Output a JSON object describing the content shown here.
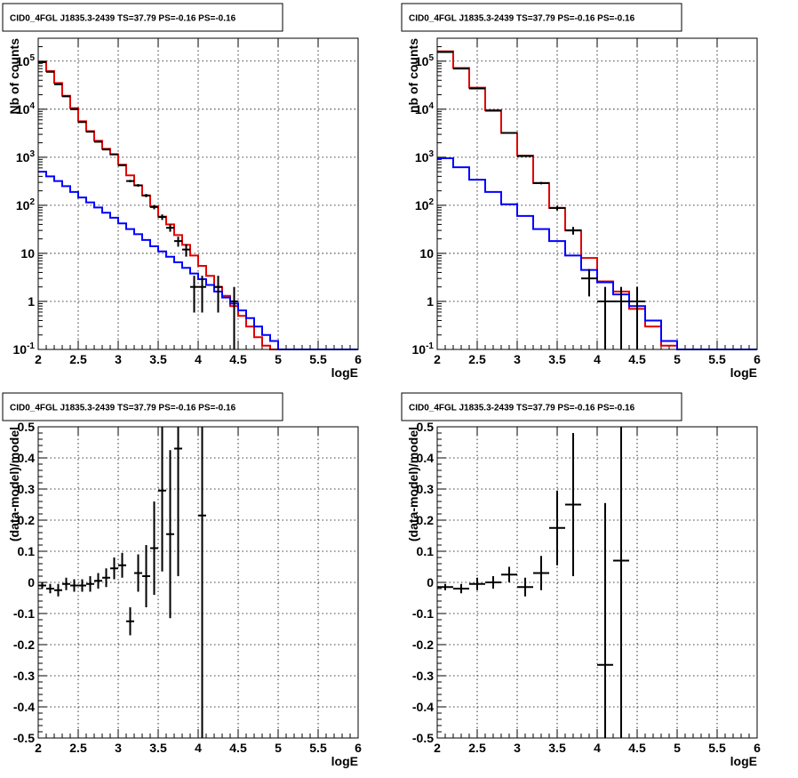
{
  "chart_data": [
    {
      "id": "tl",
      "type": "histogram",
      "title": "CID0_4FGL J1835.3-2439 TS=37.79 PS=-0.16 PS=-0.16",
      "xlabel": "logE",
      "ylabel": "Nb of counts",
      "log_y": true,
      "xlim": [
        2,
        6
      ],
      "ylim": [
        0.1,
        300000
      ],
      "x_ticks": [
        "2",
        "2.5",
        "3",
        "3.5",
        "4",
        "4.5",
        "5",
        "5.5",
        "6"
      ],
      "y_ticks": [
        "10^-1",
        "1",
        "10",
        "10^2",
        "10^3",
        "10^4",
        "10^5"
      ],
      "grid": true,
      "bin_edges": [
        2.0,
        2.1,
        2.2,
        2.3,
        2.4,
        2.5,
        2.6,
        2.7,
        2.8,
        2.9,
        3.0,
        3.1,
        3.2,
        3.3,
        3.4,
        3.5,
        3.6,
        3.7,
        3.8,
        3.9,
        4.0,
        4.1,
        4.2,
        4.3,
        4.4,
        4.5,
        4.6,
        4.7,
        4.8,
        4.9,
        5.0,
        5.1,
        5.2,
        5.3,
        5.4,
        5.5,
        5.6,
        5.7,
        5.8,
        5.9,
        6.0
      ],
      "series": [
        {
          "name": "",
          "color": "#e00000",
          "values": [
            95000,
            62000,
            35000,
            19000,
            10500,
            5600,
            3500,
            2200,
            1500,
            1150,
            700,
            420,
            260,
            160,
            95,
            58,
            40,
            24,
            15,
            9,
            5.5,
            3.4,
            2.0,
            1.3,
            0.8,
            0.5,
            0.3,
            0.18,
            0.12,
            0.1,
            0.1,
            0.1,
            0.1,
            0.1,
            0.1,
            0.1,
            0.1,
            0.1,
            0.1,
            0.1
          ]
        },
        {
          "name": "",
          "color": "#0000ff",
          "values": [
            500,
            400,
            320,
            250,
            190,
            145,
            115,
            90,
            70,
            55,
            42,
            32,
            25,
            19,
            14,
            11,
            8.5,
            6.5,
            5,
            3.8,
            2.9,
            2.2,
            1.6,
            1.2,
            0.9,
            0.65,
            0.45,
            0.3,
            0.2,
            0.15,
            0.1,
            0.1,
            0.1,
            0.1,
            0.1,
            0.1,
            0.1,
            0.1,
            0.1,
            0.1
          ]
        }
      ],
      "data_points": [
        {
          "x": 2.05,
          "y": 95000
        },
        {
          "x": 2.15,
          "y": 60000
        },
        {
          "x": 2.25,
          "y": 33000
        },
        {
          "x": 2.35,
          "y": 18500
        },
        {
          "x": 2.45,
          "y": 10000
        },
        {
          "x": 2.55,
          "y": 5400
        },
        {
          "x": 2.65,
          "y": 3400
        },
        {
          "x": 2.75,
          "y": 2100
        },
        {
          "x": 2.85,
          "y": 1450
        },
        {
          "x": 2.95,
          "y": 1150
        },
        {
          "x": 3.05,
          "y": 680
        },
        {
          "x": 3.15,
          "y": 320
        },
        {
          "x": 3.25,
          "y": 260
        },
        {
          "x": 3.35,
          "y": 160
        },
        {
          "x": 3.45,
          "y": 92
        },
        {
          "x": 3.55,
          "y": 57
        },
        {
          "x": 3.65,
          "y": 34
        },
        {
          "x": 3.75,
          "y": 18
        },
        {
          "x": 3.85,
          "y": 12
        },
        {
          "x": 3.95,
          "y": 2
        },
        {
          "x": 4.05,
          "y": 2
        },
        {
          "x": 4.25,
          "y": 2
        },
        {
          "x": 4.45,
          "y": 1
        }
      ]
    },
    {
      "id": "tr",
      "type": "histogram",
      "title": "CID0_4FGL J1835.3-2439 TS=37.79 PS=-0.16 PS=-0.16",
      "xlabel": "logE",
      "ylabel": "nb of counts",
      "log_y": true,
      "xlim": [
        2,
        6
      ],
      "ylim": [
        0.1,
        300000
      ],
      "x_ticks": [
        "2",
        "2.5",
        "3",
        "3.5",
        "4",
        "4.5",
        "5",
        "5.5",
        "6"
      ],
      "y_ticks": [
        "10^-1",
        "1",
        "10",
        "10^2",
        "10^3",
        "10^4",
        "10^5"
      ],
      "grid": true,
      "bin_edges": [
        2.0,
        2.2,
        2.4,
        2.6,
        2.8,
        3.0,
        3.2,
        3.4,
        3.6,
        3.8,
        4.0,
        4.2,
        4.4,
        4.6,
        4.8,
        5.0,
        5.2,
        5.4,
        5.6,
        5.8,
        6.0
      ],
      "series": [
        {
          "name": "",
          "color": "#e00000",
          "values": [
            160000,
            72000,
            28000,
            9500,
            3200,
            1080,
            290,
            88,
            30,
            8,
            2.6,
            1.6,
            0.7,
            0.3,
            0.12,
            0.1,
            0.1,
            0.1,
            0.1,
            0.1
          ]
        },
        {
          "name": "",
          "color": "#0000ff",
          "values": [
            950,
            620,
            340,
            190,
            105,
            60,
            32,
            18,
            9,
            4.5,
            2.5,
            1.4,
            0.8,
            0.4,
            0.15,
            0.1,
            0.1,
            0.1,
            0.1,
            0.1
          ]
        }
      ],
      "data_points": [
        {
          "x": 2.1,
          "y": 155000
        },
        {
          "x": 2.3,
          "y": 70000
        },
        {
          "x": 2.5,
          "y": 27000
        },
        {
          "x": 2.7,
          "y": 9300
        },
        {
          "x": 2.9,
          "y": 3200
        },
        {
          "x": 3.1,
          "y": 1060
        },
        {
          "x": 3.3,
          "y": 290
        },
        {
          "x": 3.5,
          "y": 88
        },
        {
          "x": 3.7,
          "y": 30
        },
        {
          "x": 3.9,
          "y": 3
        },
        {
          "x": 4.1,
          "y": 1
        },
        {
          "x": 4.3,
          "y": 1
        },
        {
          "x": 4.5,
          "y": 1
        }
      ]
    },
    {
      "id": "bl",
      "type": "scatter",
      "title": "CID0_4FGL J1835.3-2439 TS=37.79 PS=-0.16 PS=-0.16",
      "xlabel": "logE",
      "ylabel": "(data-model)/model",
      "log_y": false,
      "xlim": [
        2,
        6
      ],
      "ylim": [
        -0.5,
        0.5
      ],
      "x_ticks": [
        "2",
        "2.5",
        "3",
        "3.5",
        "4",
        "4.5",
        "5",
        "5.5",
        "6"
      ],
      "y_ticks": [
        "-0.5",
        "-0.4",
        "-0.3",
        "-0.2",
        "-0.1",
        "0",
        "0.1",
        "0.2",
        "0.3",
        "0.4",
        "0.5"
      ],
      "grid": true,
      "points": [
        {
          "x": 2.05,
          "y": -0.01,
          "err": 0.01
        },
        {
          "x": 2.15,
          "y": -0.02,
          "err": 0.015
        },
        {
          "x": 2.25,
          "y": -0.025,
          "err": 0.02
        },
        {
          "x": 2.35,
          "y": -0.005,
          "err": 0.02
        },
        {
          "x": 2.45,
          "y": -0.01,
          "err": 0.02
        },
        {
          "x": 2.55,
          "y": -0.01,
          "err": 0.02
        },
        {
          "x": 2.65,
          "y": -0.005,
          "err": 0.025
        },
        {
          "x": 2.75,
          "y": 0.005,
          "err": 0.025
        },
        {
          "x": 2.85,
          "y": 0.015,
          "err": 0.03
        },
        {
          "x": 2.95,
          "y": 0.045,
          "err": 0.035
        },
        {
          "x": 3.05,
          "y": 0.055,
          "err": 0.04
        },
        {
          "x": 3.15,
          "y": -0.125,
          "err": 0.045
        },
        {
          "x": 3.25,
          "y": 0.03,
          "err": 0.06
        },
        {
          "x": 3.35,
          "y": 0.02,
          "err": 0.1
        },
        {
          "x": 3.45,
          "y": 0.11,
          "err": 0.15
        },
        {
          "x": 3.55,
          "y": 0.295,
          "err": 0.26
        },
        {
          "x": 3.65,
          "y": 0.155,
          "err": 0.27
        },
        {
          "x": 3.75,
          "y": 0.43,
          "err": 0.41
        },
        {
          "x": 4.05,
          "y": 0.215,
          "err": 0.9
        }
      ]
    },
    {
      "id": "br",
      "type": "scatter",
      "title": "CID0_4FGL J1835.3-2439 TS=37.79 PS=-0.16 PS=-0.16",
      "xlabel": "logE",
      "ylabel": "(data-model)/model",
      "log_y": false,
      "xlim": [
        2,
        6
      ],
      "ylim": [
        -0.5,
        0.5
      ],
      "x_ticks": [
        "2",
        "2.5",
        "3",
        "3.5",
        "4",
        "4.5",
        "5",
        "5.5",
        "6"
      ],
      "y_ticks": [
        "-0.5",
        "-0.4",
        "-0.3",
        "-0.2",
        "-0.1",
        "0",
        "0.1",
        "0.2",
        "0.3",
        "0.4",
        "0.5"
      ],
      "grid": true,
      "points": [
        {
          "x": 2.1,
          "y": -0.015,
          "err": 0.01
        },
        {
          "x": 2.3,
          "y": -0.02,
          "err": 0.015
        },
        {
          "x": 2.5,
          "y": -0.005,
          "err": 0.02
        },
        {
          "x": 2.7,
          "y": 0.0,
          "err": 0.02
        },
        {
          "x": 2.9,
          "y": 0.025,
          "err": 0.025
        },
        {
          "x": 3.1,
          "y": -0.015,
          "err": 0.03
        },
        {
          "x": 3.3,
          "y": 0.03,
          "err": 0.055
        },
        {
          "x": 3.5,
          "y": 0.175,
          "err": 0.12
        },
        {
          "x": 3.7,
          "y": 0.25,
          "err": 0.23
        },
        {
          "x": 4.1,
          "y": -0.265,
          "err": 0.52
        },
        {
          "x": 4.3,
          "y": 0.07,
          "err": 0.7
        }
      ]
    }
  ]
}
